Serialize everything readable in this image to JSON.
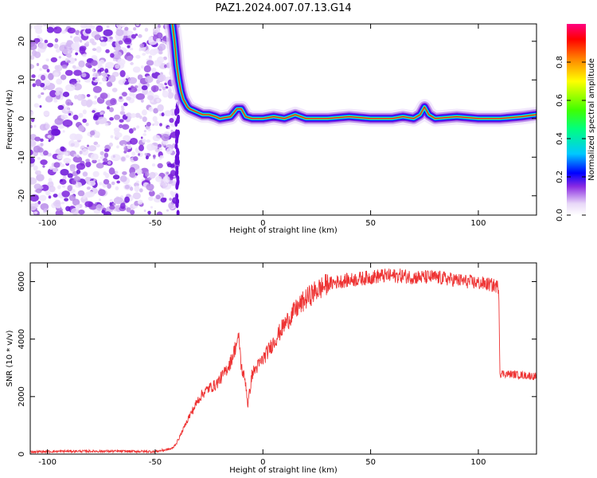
{
  "title": "PAZ1.2024.007.07.13.G14",
  "colors": {
    "snr_line": "#ee3333",
    "cold": "#8a2be2",
    "hot": "#ff0000"
  },
  "chart_data": [
    {
      "type": "heatmap",
      "xlabel": "Height of straight line (km)",
      "ylabel": "Frequency (Hz)",
      "xlim": [
        -108,
        127
      ],
      "ylim": [
        -25,
        24.5
      ],
      "xticks": [
        -100,
        -50,
        0,
        50,
        100
      ],
      "yticks": [
        -20,
        -10,
        0,
        10,
        20
      ],
      "colorbar": {
        "label": "Normalized spectral amplitude",
        "range": [
          0,
          1
        ],
        "ticks": [
          0.0,
          0.2,
          0.4,
          0.6,
          0.8
        ],
        "colormap": "rainbow (white-violet-blue-cyan-green-yellow-red-magenta)"
      },
      "ridge": {
        "description": "dominant frequency ridge vs height",
        "x": [
          -42,
          -41,
          -40,
          -39,
          -38,
          -37,
          -36,
          -35,
          -34,
          -32,
          -30,
          -28,
          -25,
          -22,
          -20,
          -15,
          -12,
          -10,
          -8,
          -5,
          0,
          5,
          10,
          15,
          20,
          30,
          40,
          50,
          60,
          65,
          70,
          73,
          75,
          77,
          80,
          90,
          100,
          110,
          120,
          127
        ],
        "y": [
          24.5,
          20,
          14,
          10,
          7,
          5,
          4,
          3,
          2.5,
          2,
          1.5,
          1,
          1,
          0.5,
          0,
          0.5,
          2.5,
          2.5,
          0.5,
          0,
          0,
          0.5,
          0,
          1,
          0,
          0,
          0.5,
          0,
          0,
          0.5,
          0,
          1,
          3,
          1,
          0,
          0.5,
          0,
          0,
          0.5,
          1
        ]
      },
      "noise_region": {
        "x_range": [
          -108,
          -40
        ],
        "y_range": [
          -25,
          24.5
        ]
      }
    },
    {
      "type": "line",
      "xlabel": "Height of straight line (km)",
      "ylabel": "SNR (10 * v/v)",
      "xlim": [
        -108,
        127
      ],
      "ylim": [
        0,
        6650
      ],
      "xticks": [
        -100,
        -50,
        0,
        50,
        100
      ],
      "yticks": [
        0,
        2000,
        4000,
        6000
      ],
      "series": [
        {
          "x": [
            -108,
            -90,
            -70,
            -50,
            -45,
            -42,
            -40,
            -38,
            -35,
            -32,
            -30,
            -28,
            -25,
            -22,
            -20,
            -18,
            -15,
            -12,
            -11,
            -10,
            -8,
            -7,
            -5,
            -3,
            0,
            5,
            10,
            15,
            20,
            25,
            30,
            35,
            40,
            45,
            50,
            55,
            60,
            65,
            70,
            75,
            80,
            85,
            90,
            95,
            100,
            105,
            108,
            109.5,
            110,
            112,
            115,
            120,
            127
          ],
          "y": [
            80,
            100,
            100,
            90,
            150,
            200,
            400,
            700,
            1200,
            1600,
            1900,
            2100,
            2300,
            2400,
            2600,
            2800,
            3200,
            3900,
            4000,
            3000,
            2500,
            1700,
            2800,
            3000,
            3300,
            3900,
            4500,
            5000,
            5400,
            5700,
            5900,
            6000,
            6050,
            6100,
            6150,
            6200,
            6200,
            6200,
            6150,
            6150,
            6150,
            6100,
            6050,
            6000,
            5950,
            5900,
            5850,
            5800,
            2800,
            2800,
            2780,
            2750,
            2700
          ]
        }
      ]
    }
  ]
}
